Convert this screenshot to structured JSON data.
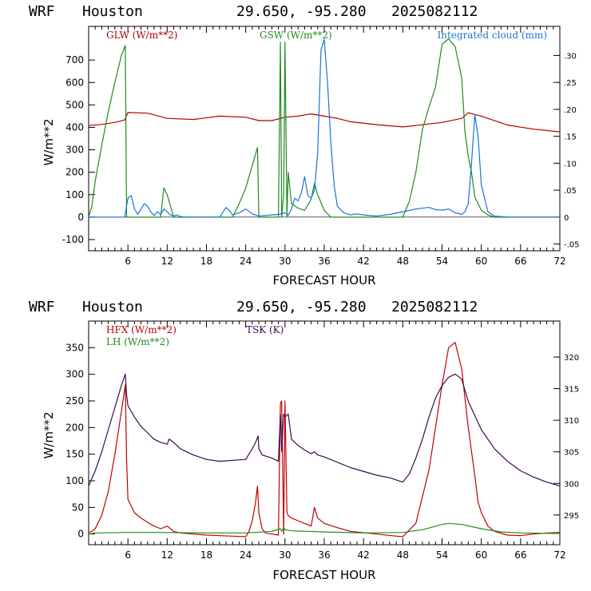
{
  "chart_data": [
    {
      "type": "line",
      "header": {
        "model": "WRF",
        "location": "Houston",
        "coords": "29.650, -95.280",
        "init": "2025082112"
      },
      "xlabel": "FORECAST HOUR",
      "ylabel": "W/m**2",
      "xlim": [
        0,
        72
      ],
      "ylim": [
        -150,
        850
      ],
      "y2lim": [
        -0.0625,
        0.354
      ],
      "xticks": [
        6,
        12,
        18,
        24,
        30,
        36,
        42,
        48,
        54,
        60,
        66,
        72
      ],
      "yticks": [
        -100,
        0,
        100,
        200,
        300,
        400,
        500,
        600,
        700
      ],
      "y2ticks": [
        -0.05,
        0,
        0.05,
        0.1,
        0.15,
        0.2,
        0.25,
        0.3
      ],
      "y2ticklabels": [
        "-.05",
        "0",
        ".05",
        ".10",
        ".15",
        ".20",
        ".25",
        ".30"
      ],
      "series": [
        {
          "name": "GLW (W/m**2)",
          "color": "#b00000",
          "axis": "left",
          "x": [
            0,
            2,
            4,
            5.5,
            6,
            9,
            12,
            16,
            20,
            24,
            26,
            28,
            30,
            32,
            34,
            36,
            38,
            40,
            44,
            48,
            50,
            54,
            57,
            58,
            60,
            64,
            68,
            72
          ],
          "y": [
            408,
            413,
            422,
            433,
            466,
            463,
            440,
            435,
            450,
            445,
            430,
            430,
            445,
            450,
            460,
            450,
            440,
            425,
            412,
            402,
            408,
            422,
            440,
            465,
            450,
            410,
            392,
            380
          ]
        },
        {
          "name": "GSW (W/m**2)",
          "color": "#1e8c1e",
          "axis": "left",
          "x": [
            0,
            0.5,
            1,
            2,
            3,
            4,
            5,
            5.6,
            5.8,
            6,
            7,
            8,
            9,
            10,
            11,
            11.5,
            12,
            12.5,
            13,
            14,
            19,
            20,
            22,
            23,
            24,
            25,
            25.8,
            26,
            26.5,
            28,
            29,
            29.3,
            29.5,
            29.8,
            30,
            30.3,
            30.5,
            31,
            32,
            33,
            34,
            34.5,
            35,
            36,
            37,
            39,
            44,
            48,
            49,
            50,
            51,
            52,
            53,
            54,
            55,
            56,
            57,
            57.5,
            58,
            58.5,
            59,
            60,
            61,
            62,
            72
          ],
          "y": [
            0,
            50,
            160,
            320,
            470,
            600,
            720,
            765,
            0,
            0,
            0,
            0,
            0,
            0,
            0,
            130,
            100,
            50,
            0,
            0,
            0,
            0,
            0,
            60,
            130,
            230,
            310,
            0,
            0,
            0,
            0,
            780,
            0,
            100,
            780,
            0,
            200,
            60,
            40,
            30,
            80,
            150,
            100,
            30,
            0,
            0,
            0,
            0,
            70,
            200,
            390,
            490,
            580,
            770,
            795,
            760,
            620,
            380,
            270,
            200,
            90,
            30,
            10,
            0,
            0
          ]
        },
        {
          "name": "Integrated cloud (mm)",
          "color": "#1a73d9",
          "axis": "right",
          "x": [
            0,
            5.5,
            6,
            6.5,
            7,
            7.5,
            8,
            8.5,
            9,
            9.5,
            10,
            10.5,
            11,
            11.5,
            12,
            12.5,
            13,
            13.5,
            14,
            15,
            20,
            21,
            21.5,
            22,
            23,
            24,
            25,
            26,
            27,
            28,
            29,
            30,
            30.5,
            31,
            31.5,
            32,
            32.5,
            33,
            33.5,
            34,
            34.5,
            35,
            35.5,
            36,
            36.5,
            37,
            37.5,
            38,
            39,
            40,
            41,
            42,
            44,
            46,
            48,
            50,
            52,
            53,
            54,
            55,
            56,
            57,
            57.5,
            58,
            58.5,
            59,
            59.5,
            60,
            61,
            62,
            64,
            72
          ],
          "y": [
            0,
            0,
            0.035,
            0.04,
            0.015,
            0.005,
            0.015,
            0.025,
            0.02,
            0.01,
            0.003,
            0.01,
            0.005,
            0.015,
            0.01,
            0.004,
            0.002,
            0.004,
            0.001,
            0,
            0,
            0.018,
            0.012,
            0.004,
            0.008,
            0.015,
            0.006,
            0.002,
            0.003,
            0.004,
            0.005,
            0.008,
            0.003,
            0.015,
            0.035,
            0.03,
            0.045,
            0.075,
            0.04,
            0.035,
            0.05,
            0.12,
            0.31,
            0.33,
            0.25,
            0.14,
            0.06,
            0.02,
            0.008,
            0.004,
            0.006,
            0.004,
            0.002,
            0.005,
            0.01,
            0.015,
            0.018,
            0.014,
            0.013,
            0.015,
            0.008,
            0.005,
            0.01,
            0.025,
            0.1,
            0.19,
            0.15,
            0.06,
            0.01,
            0.002,
            0,
            0
          ]
        }
      ]
    },
    {
      "type": "line",
      "header": {
        "model": "WRF",
        "location": "Houston",
        "coords": "29.650, -95.280",
        "init": "2025082112"
      },
      "xlabel": "FORECAST HOUR",
      "ylabel": "W/m**2",
      "xlim": [
        0,
        72
      ],
      "ylim": [
        -20,
        400
      ],
      "y2lim": [
        290.3,
        325.7
      ],
      "xticks": [
        6,
        12,
        18,
        24,
        30,
        36,
        42,
        48,
        54,
        60,
        66,
        72
      ],
      "yticks": [
        0,
        50,
        100,
        150,
        200,
        250,
        300,
        350
      ],
      "y2ticks": [
        295,
        300,
        305,
        310,
        315,
        320
      ],
      "y2ticklabels": [
        "295",
        "300",
        "305",
        "310",
        "315",
        "320"
      ],
      "series": [
        {
          "name": "HFX (W/m**2)",
          "color": "#c00000",
          "axis": "left",
          "x": [
            0,
            0.5,
            1,
            2,
            3,
            4,
            5,
            5.3,
            5.6,
            5.8,
            6,
            7,
            8,
            9,
            10,
            11,
            12,
            12.5,
            13,
            14,
            16,
            18,
            20,
            22,
            24,
            24.5,
            25,
            25.5,
            25.8,
            26,
            26.5,
            27,
            28,
            29,
            29.3,
            29.5,
            29.8,
            30,
            30.3,
            30.5,
            31,
            32,
            33,
            34,
            34.5,
            35,
            36,
            38,
            40,
            44,
            47,
            48,
            50,
            52,
            53,
            54,
            55,
            56,
            57,
            58,
            59,
            59.5,
            60,
            61,
            62,
            64,
            66,
            68,
            70,
            72
          ],
          "y": [
            3,
            5,
            10,
            35,
            80,
            150,
            230,
            255,
            280,
            140,
            65,
            40,
            30,
            22,
            15,
            10,
            15,
            10,
            5,
            2,
            0,
            -2,
            -3,
            -4,
            -5,
            5,
            25,
            60,
            90,
            40,
            10,
            2,
            0,
            -2,
            245,
            250,
            0,
            250,
            40,
            35,
            30,
            25,
            20,
            15,
            50,
            30,
            20,
            12,
            5,
            0,
            -4,
            -5,
            20,
            120,
            200,
            280,
            350,
            360,
            310,
            200,
            110,
            60,
            40,
            15,
            5,
            -2,
            -3,
            0,
            2,
            3
          ]
        },
        {
          "name": "LH  (W/m**2)",
          "color": "#1e8c1e",
          "axis": "left",
          "x": [
            0,
            1,
            6,
            10,
            18,
            24,
            28,
            29.3,
            29.5,
            29.8,
            30,
            31,
            36,
            42,
            48,
            51,
            54,
            55,
            57,
            60,
            63,
            66,
            72
          ],
          "y": [
            0,
            2,
            3,
            3,
            2,
            2,
            5,
            10,
            5,
            12,
            8,
            6,
            4,
            2,
            3,
            8,
            18,
            20,
            18,
            10,
            4,
            2,
            1
          ]
        },
        {
          "name": "TSK (K)",
          "color": "#3b0a52",
          "axis": "right",
          "x": [
            0,
            1,
            2,
            3,
            4,
            5,
            5.6,
            5.8,
            6,
            7,
            8,
            9,
            10,
            11,
            12,
            12.3,
            13,
            14,
            16,
            18,
            20,
            24,
            25,
            25.5,
            25.9,
            26,
            26.5,
            28,
            29,
            29.3,
            29.5,
            29.8,
            30,
            30.5,
            31,
            32,
            33,
            34,
            34.5,
            35,
            36,
            40,
            44,
            46,
            48,
            49,
            50,
            51,
            52,
            53,
            54,
            55,
            56,
            57,
            58,
            60,
            62,
            64,
            66,
            68,
            70,
            72
          ],
          "y": [
            299.6,
            302,
            305,
            308.5,
            312,
            315.5,
            317.3,
            314,
            312.3,
            310.5,
            309,
            308,
            307,
            306.5,
            306.2,
            307,
            306.5,
            305.5,
            304.5,
            303.8,
            303.5,
            303.8,
            305.5,
            306.5,
            307.5,
            305.5,
            304.5,
            304,
            303.5,
            311,
            305,
            311,
            310.5,
            311,
            307,
            306,
            305.3,
            304.7,
            305,
            304.5,
            304.2,
            302.5,
            301.3,
            300.9,
            300.2,
            301.5,
            304,
            307,
            310.5,
            313.5,
            315.5,
            316.8,
            317.3,
            316.5,
            313,
            308.5,
            305.5,
            303.5,
            302,
            301,
            300.2,
            299.6
          ]
        }
      ]
    }
  ]
}
